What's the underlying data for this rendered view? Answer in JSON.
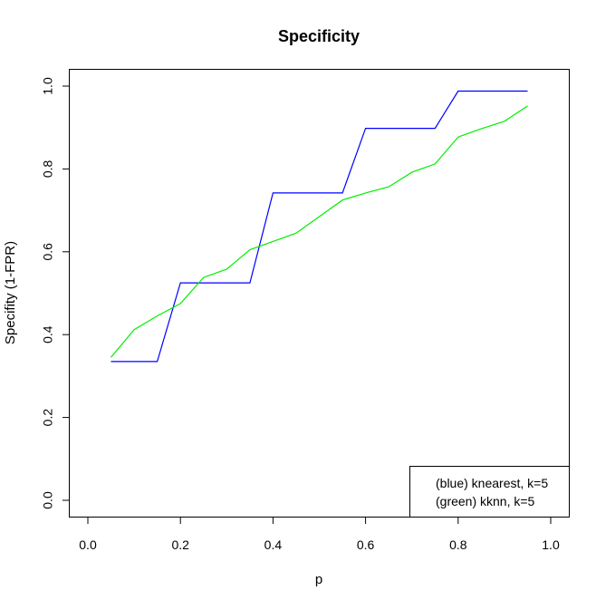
{
  "chart_data": {
    "type": "line",
    "title": "Specificity",
    "xlabel": "p",
    "ylabel": "Specifity (1-FPR)",
    "xlim": [
      0.0,
      1.0
    ],
    "ylim": [
      0.0,
      1.0
    ],
    "x_ticks": [
      0.0,
      0.2,
      0.4,
      0.6,
      0.8,
      1.0
    ],
    "x_tick_labels": [
      "0.0",
      "0.2",
      "0.4",
      "0.6",
      "0.8",
      "1.0"
    ],
    "y_ticks": [
      0.0,
      0.2,
      0.4,
      0.6,
      0.8,
      1.0
    ],
    "y_tick_labels": [
      "0.0",
      "0.2",
      "0.4",
      "0.6",
      "0.8",
      "1.0"
    ],
    "grid": false,
    "legend_position": "bottom-right",
    "series": [
      {
        "name": "(blue) knearest, k=5",
        "color": "#0000ff",
        "points": [
          [
            0.05,
            0.335
          ],
          [
            0.15,
            0.335
          ],
          [
            0.2,
            0.525
          ],
          [
            0.35,
            0.525
          ],
          [
            0.4,
            0.742
          ],
          [
            0.55,
            0.742
          ],
          [
            0.6,
            0.898
          ],
          [
            0.75,
            0.898
          ],
          [
            0.8,
            0.988
          ],
          [
            0.95,
            0.988
          ]
        ]
      },
      {
        "name": "(green) kknn, k=5",
        "color": "#00ee00",
        "points": [
          [
            0.05,
            0.345
          ],
          [
            0.1,
            0.412
          ],
          [
            0.15,
            0.445
          ],
          [
            0.2,
            0.475
          ],
          [
            0.25,
            0.538
          ],
          [
            0.3,
            0.558
          ],
          [
            0.35,
            0.605
          ],
          [
            0.4,
            0.625
          ],
          [
            0.45,
            0.645
          ],
          [
            0.5,
            0.685
          ],
          [
            0.55,
            0.725
          ],
          [
            0.6,
            0.742
          ],
          [
            0.65,
            0.757
          ],
          [
            0.7,
            0.792
          ],
          [
            0.75,
            0.812
          ],
          [
            0.8,
            0.877
          ],
          [
            0.85,
            0.897
          ],
          [
            0.9,
            0.915
          ],
          [
            0.95,
            0.952
          ]
        ]
      }
    ]
  }
}
